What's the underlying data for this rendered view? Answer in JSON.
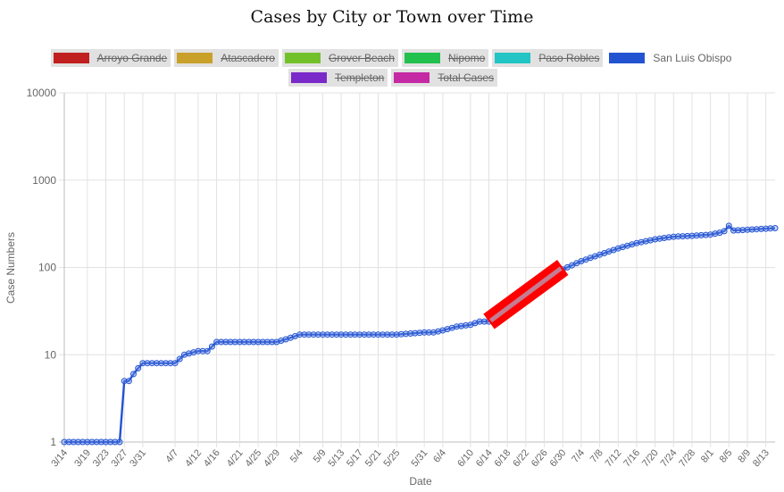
{
  "chart_data": {
    "type": "line",
    "title": "Cases by City or Town over Time",
    "xlabel": "Date",
    "ylabel": "Case Numbers",
    "y_scale": "log",
    "ylim": [
      1,
      10000
    ],
    "y_ticks": [
      "1",
      "10",
      "100",
      "1000",
      "10000"
    ],
    "x_tick_labels": [
      "3/14",
      "3/19",
      "3/23",
      "3/27",
      "3/31",
      "4/7",
      "4/12",
      "4/16",
      "4/21",
      "4/25",
      "4/29",
      "5/4",
      "5/9",
      "5/13",
      "5/17",
      "5/21",
      "5/25",
      "5/31",
      "6/4",
      "6/10",
      "6/14",
      "6/18",
      "6/22",
      "6/26",
      "6/30",
      "7/4",
      "7/8",
      "7/12",
      "7/16",
      "7/20",
      "7/24",
      "7/28",
      "8/1",
      "8/5",
      "8/9",
      "8/13"
    ],
    "grid": true,
    "legend_position": "top",
    "legend": [
      {
        "name": "Arroyo Grande",
        "color": "#c0201f",
        "hidden": true
      },
      {
        "name": "Atascadero",
        "color": "#c9a02a",
        "hidden": true
      },
      {
        "name": "Grover Beach",
        "color": "#73c12a",
        "hidden": true
      },
      {
        "name": "Nipomo",
        "color": "#22c04d",
        "hidden": true
      },
      {
        "name": "Paso Robles",
        "color": "#22c4c4",
        "hidden": true
      },
      {
        "name": "San Luis Obispo",
        "color": "#2253d1",
        "hidden": false
      },
      {
        "name": "Templeton",
        "color": "#7a2ac9",
        "hidden": true
      },
      {
        "name": "Total Cases",
        "color": "#c42aa3",
        "hidden": true
      }
    ],
    "series": [
      {
        "name": "San Luis Obispo",
        "color": "#2253d1",
        "x": [
          "3/14",
          "3/19",
          "3/23",
          "3/26",
          "3/27",
          "3/28",
          "3/29",
          "3/30",
          "3/31",
          "4/2",
          "4/4",
          "4/7",
          "4/9",
          "4/12",
          "4/14",
          "4/16",
          "4/18",
          "4/21",
          "4/25",
          "4/29",
          "5/1",
          "5/4",
          "5/9",
          "5/13",
          "5/17",
          "5/21",
          "5/25",
          "5/31",
          "6/2",
          "6/4",
          "6/7",
          "6/10",
          "6/12",
          "6/14",
          "6/16",
          "6/18",
          "6/22",
          "6/26",
          "6/30",
          "7/4",
          "7/8",
          "7/12",
          "7/16",
          "7/20",
          "7/24",
          "7/28",
          "8/1",
          "8/3",
          "8/4",
          "8/5",
          "8/6",
          "8/9",
          "8/13",
          "8/15"
        ],
        "values": [
          1,
          1,
          1,
          1,
          5,
          5,
          6,
          7,
          8,
          8,
          8,
          8,
          10,
          11,
          11,
          14,
          14,
          14,
          14,
          14,
          15,
          17,
          17,
          17,
          17,
          17,
          17,
          18,
          18,
          19,
          21,
          22,
          24,
          24,
          28,
          36,
          48,
          65,
          95,
          118,
          140,
          165,
          190,
          210,
          225,
          230,
          238,
          250,
          260,
          300,
          265,
          270,
          278,
          282
        ]
      }
    ],
    "annotation": {
      "type": "highlight-stroke",
      "color": "#ff0000",
      "from_x": "6/14",
      "from_y": 24,
      "to_x": "6/30",
      "to_y": 100
    }
  }
}
